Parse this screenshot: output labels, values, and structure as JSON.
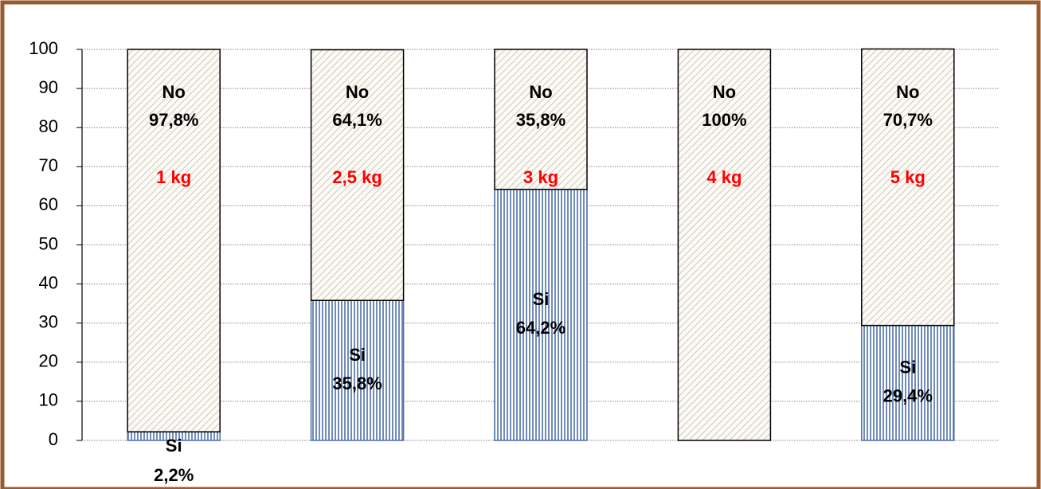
{
  "chart_data": {
    "type": "stacked-bar",
    "categories": [
      "1 kg",
      "2,5 kg",
      "3 kg",
      "4 kg",
      "5 kg"
    ],
    "series": [
      {
        "name": "Si",
        "color": "#4f6fa8",
        "values": [
          2.2,
          35.8,
          64.2,
          0,
          29.4
        ],
        "value_labels": [
          "2,2%",
          "35,8%",
          "64,2%",
          null,
          "29,4%"
        ]
      },
      {
        "name": "No",
        "color": "#c8c2b0",
        "values": [
          97.8,
          64.1,
          35.8,
          100,
          70.7
        ],
        "value_labels": [
          "97,8%",
          "64,1%",
          "35,8%",
          "100%",
          "70,7%"
        ]
      }
    ],
    "ylim": [
      0,
      100
    ],
    "yticks": [
      0,
      10,
      20,
      30,
      40,
      50,
      60,
      70,
      80,
      90,
      100
    ],
    "grid": true
  }
}
